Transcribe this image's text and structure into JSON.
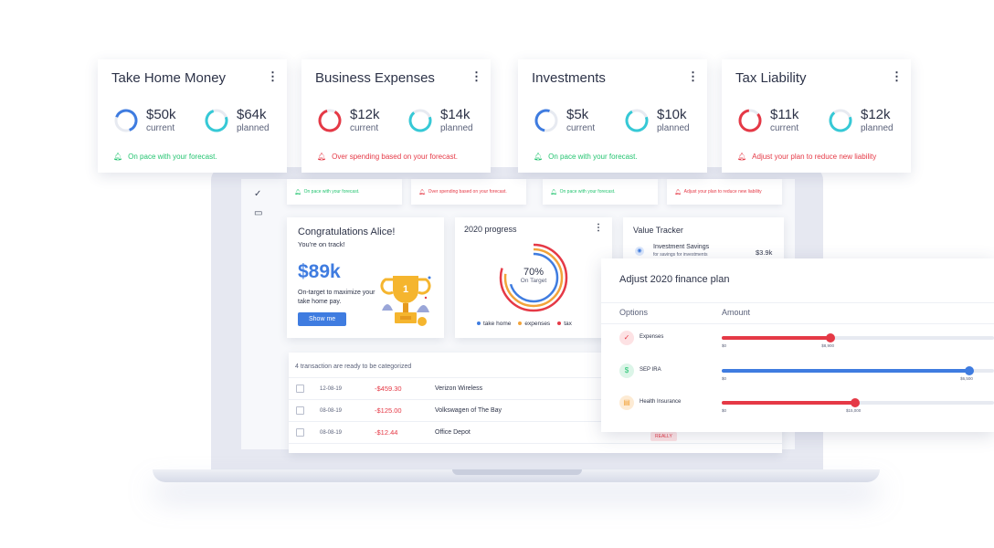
{
  "summary_cards": [
    {
      "title": "Take Home Money",
      "current_value": "$50k",
      "current_label": "current",
      "planned_value": "$64k",
      "planned_label": "planned",
      "status": "On pace with your forecast.",
      "status_type": "good",
      "current_ring_color": "#3f7ce0",
      "planned_ring_color": "#36c9d6"
    },
    {
      "title": "Business Expenses",
      "current_value": "$12k",
      "current_label": "current",
      "planned_value": "$14k",
      "planned_label": "planned",
      "status": "Over spending based on your forecast.",
      "status_type": "bad",
      "current_ring_color": "#e53946",
      "planned_ring_color": "#36c9d6"
    },
    {
      "title": "Investments",
      "current_value": "$5k",
      "current_label": "current",
      "planned_value": "$10k",
      "planned_label": "planned",
      "status": "On pace with your forecast.",
      "status_type": "good",
      "current_ring_color": "#3f7ce0",
      "planned_ring_color": "#36c9d6"
    },
    {
      "title": "Tax Liability",
      "current_value": "$11k",
      "current_label": "current",
      "planned_value": "$12k",
      "planned_label": "planned",
      "status": "Adjust your plan to reduce new liability",
      "status_type": "bad",
      "current_ring_color": "#e53946",
      "planned_ring_color": "#36c9d6"
    }
  ],
  "mini_statuses": [
    "On pace with your forecast.",
    "Over spending based on your forecast.",
    "On pace with your forecast.",
    "Adjust your plan to reduce new liability"
  ],
  "congrats": {
    "title": "Congratulations Alice!",
    "subtitle": "You're on track!",
    "amount": "$89k",
    "note": "On-target to maximize your take home pay.",
    "button": "Show me"
  },
  "progress": {
    "title": "2020 progress",
    "percent": "70%",
    "caption": "On Target",
    "legend": [
      {
        "label": "take home",
        "color": "#3f7ce0"
      },
      {
        "label": "expenses",
        "color": "#f2a33a"
      },
      {
        "label": "tax",
        "color": "#e53946"
      }
    ]
  },
  "value_tracker": {
    "title": "Value Tracker",
    "item": "Investment Savings",
    "item_sub": "for savings for investments",
    "value": "$3.9k"
  },
  "transactions": {
    "header": "4 transaction are ready to be categorized",
    "rows": [
      {
        "date": "12-08-19",
        "amount": "-$459.30",
        "merchant": "Verizon Wireless"
      },
      {
        "date": "08-08-19",
        "amount": "-$125.00",
        "merchant": "Volkswagen of The Bay"
      },
      {
        "date": "08-08-19",
        "amount": "-$12.44",
        "merchant": "Office Depot"
      }
    ],
    "tag": "REALLY"
  },
  "finance_plan": {
    "title": "Adjust 2020 finance plan",
    "col_options": "Options",
    "col_amount": "Amount",
    "rows": [
      {
        "name": "Expenses",
        "min": "$0",
        "value_label": "$8,900",
        "fraction": 0.4,
        "color": "#e53946",
        "icon_bg": "#fde2e4",
        "icon_color": "#e53946",
        "icon_glyph": "✓"
      },
      {
        "name": "SEP IRA",
        "min": "$0",
        "value_label": "$6,500",
        "fraction": 0.91,
        "color": "#3f7ce0",
        "icon_bg": "#dcf5e8",
        "icon_color": "#23c470",
        "icon_glyph": "$"
      },
      {
        "name": "Health Insurance",
        "min": "$0",
        "value_label": "$15,000",
        "fraction": 0.49,
        "color": "#e53946",
        "icon_bg": "#fdebd4",
        "icon_color": "#f2a33a",
        "icon_glyph": "▤"
      }
    ]
  }
}
